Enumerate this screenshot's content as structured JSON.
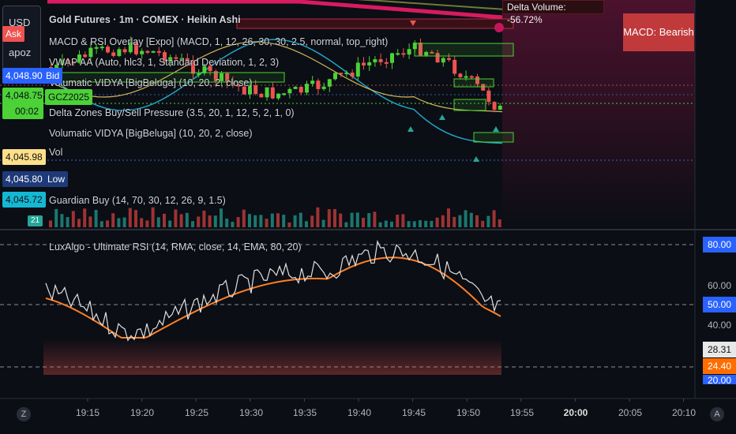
{
  "symbol_panel": {
    "currency": "USD",
    "account": "apoz"
  },
  "legend": {
    "title": "Gold Futures · 1m · COMEX · Heikin Ashi",
    "indicators": [
      "MACD & RSI Overlay [Expo] (MACD, 1, 12, 26, 30, 30, 2.5, normal, top_right)",
      "VWAP AA (Auto, hlc3, 1, Standard Deviation, 1, 2, 3)",
      "Volumatic VIDYA [BigBeluga] (10, 20, 2, close)",
      "Delta Zones Buy/Sell Pressure (3.5, 20, 1, 12, 5, 2, 1, 0)",
      "Volumatic VIDYA [BigBeluga] (10, 20, 2, close)",
      "Vol",
      "Guardian Buy (14, 70, 30, 12, 26, 9, 1.5)"
    ],
    "osc_title": "LuxAlgo - Ultimate RSI (14, RMA, close, 14, EMA, 80, 20)"
  },
  "left_labels": {
    "ask": "Ask",
    "bid_price": "4,048.90",
    "bid": "Bid",
    "price": "4,048.75",
    "countdown": "00:02",
    "contract": "GCZ2025",
    "p1": "4,045.98",
    "p2": "4,045.80",
    "low": "Low",
    "p3": "4,045.72",
    "vol_badge": "21"
  },
  "overlays": {
    "delta_volume": "Delta Volume: -56.72%",
    "macd_status": "MACD: Bearish"
  },
  "rsi_axis": {
    "upper": "80.00",
    "mid": "50.00",
    "rsi_value": "28.31",
    "signal_value": "24.40",
    "lower": "20.00",
    "tick_60": "60.00",
    "tick_40": "40.00"
  },
  "time_axis": [
    "19:15",
    "19:20",
    "19:25",
    "19:30",
    "19:35",
    "19:40",
    "19:45",
    "19:50",
    "19:55",
    "20:00",
    "20:05",
    "20:10"
  ],
  "buttons": {
    "zoom": "Z",
    "auto": "A"
  },
  "colors": {
    "bull": "#26a69a",
    "bear": "#ef5350",
    "lime": "#4cd137",
    "rsi": "#e0e0e0",
    "signal": "#ff7f27",
    "axis_blue": "#2962ff"
  }
}
